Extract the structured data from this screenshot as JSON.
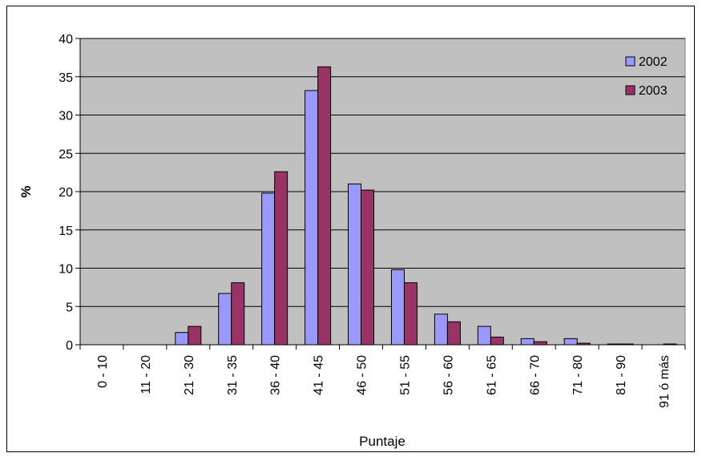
{
  "chart_data": {
    "type": "bar",
    "title": "",
    "xlabel": "Puntaje",
    "ylabel": "%",
    "ylim": [
      0,
      40
    ],
    "yticks": [
      0,
      5,
      10,
      15,
      20,
      25,
      30,
      35,
      40
    ],
    "grid": true,
    "legend_position": "top-right",
    "categories": [
      "0 - 10",
      "11 - 20",
      "21 - 30",
      "31 - 35",
      "36 - 40",
      "41 - 45",
      "46 - 50",
      "51 - 55",
      "56 - 60",
      "61 - 65",
      "66 - 70",
      "71 - 80",
      "81 - 90",
      "91 ó más"
    ],
    "series": [
      {
        "name": "2002",
        "color": "#9999ff",
        "values": [
          0,
          0,
          1.6,
          6.7,
          19.8,
          33.2,
          21.0,
          9.8,
          4.0,
          2.4,
          0.8,
          0.8,
          0.1,
          0
        ]
      },
      {
        "name": "2003",
        "color": "#993366",
        "values": [
          0,
          0,
          2.4,
          8.1,
          22.6,
          36.3,
          20.2,
          8.1,
          3.0,
          1.0,
          0.4,
          0.2,
          0.1,
          0.1
        ]
      }
    ],
    "plot_background": "#c0c0c0"
  }
}
